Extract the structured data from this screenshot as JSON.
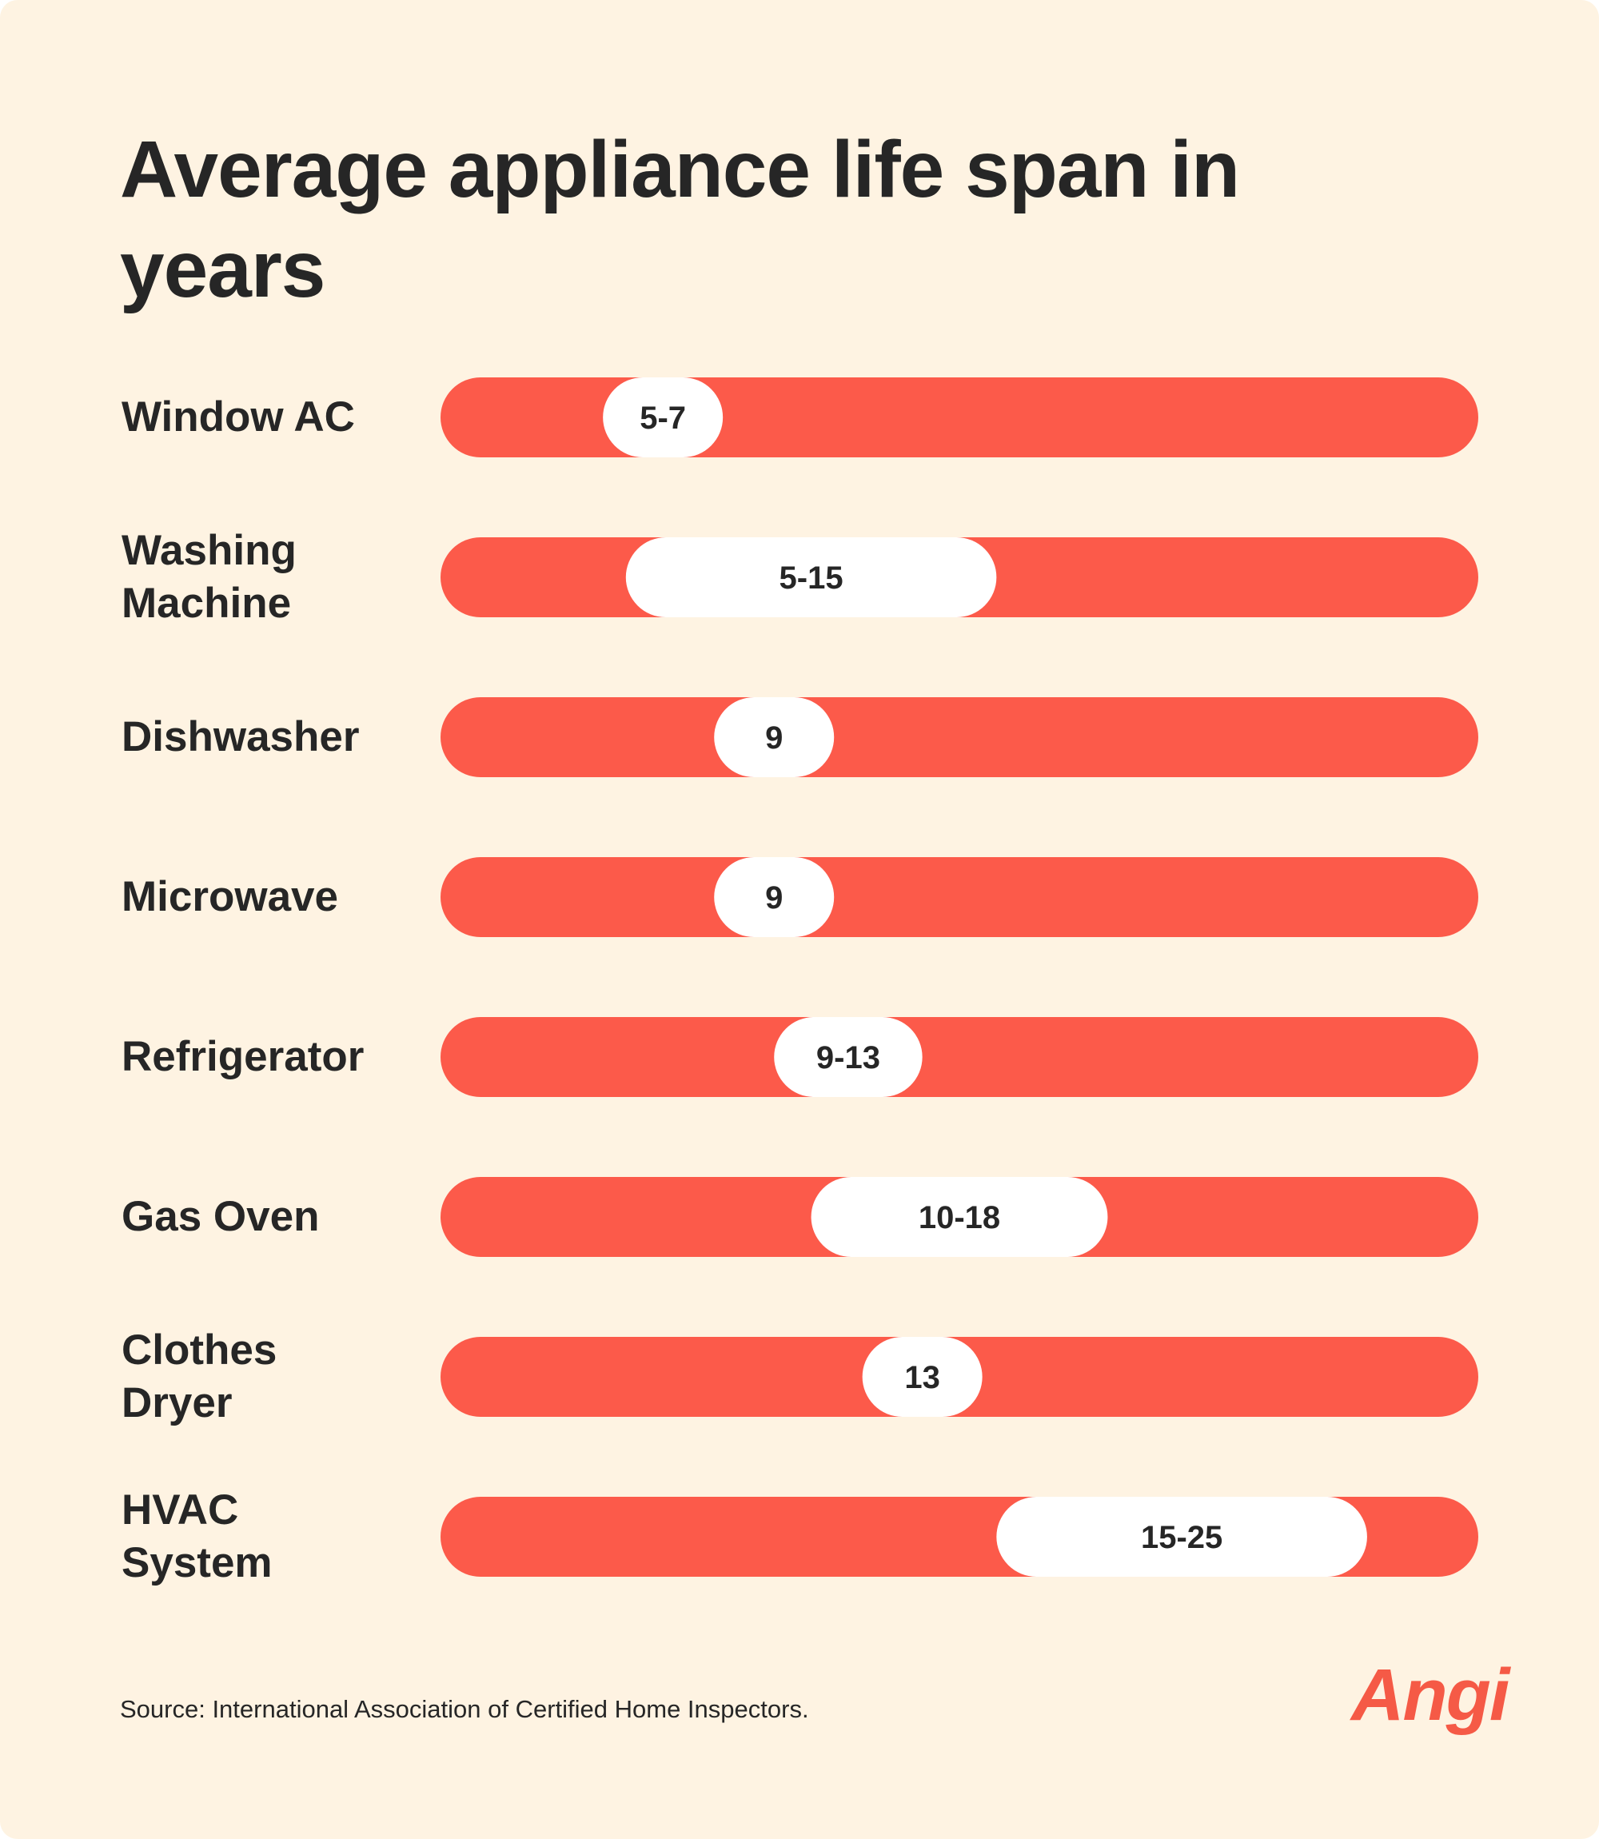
{
  "colors": {
    "background": "#fef3e2",
    "bar": "#fc5a4a",
    "pill": "#ffffff",
    "text": "#262626",
    "brand": "#f55a46"
  },
  "chart_data": {
    "type": "bar",
    "title": "Average appliance life span in years",
    "axis_range": [
      0,
      28
    ],
    "categories": [
      {
        "label_lines": [
          "Window AC"
        ],
        "value": "5-7",
        "low": 5,
        "high": 7
      },
      {
        "label_lines": [
          "Washing",
          "Machine"
        ],
        "value": "5-15",
        "low": 5,
        "high": 15
      },
      {
        "label_lines": [
          "Dishwasher"
        ],
        "value": "9",
        "low": 9,
        "high": 9
      },
      {
        "label_lines": [
          "Microwave"
        ],
        "value": "9",
        "low": 9,
        "high": 9
      },
      {
        "label_lines": [
          "Refrigerator"
        ],
        "value": "9-13",
        "low": 9,
        "high": 13
      },
      {
        "label_lines": [
          "Gas Oven"
        ],
        "value": "10-18",
        "low": 10,
        "high": 18
      },
      {
        "label_lines": [
          "Clothes",
          "Dryer"
        ],
        "value": "13",
        "low": 13,
        "high": 13
      },
      {
        "label_lines": [
          "HVAC",
          "System"
        ],
        "value": "15-25",
        "low": 15,
        "high": 25
      }
    ]
  },
  "footer": {
    "source": "Source: International Association of Certified Home Inspectors.",
    "logo": "Angi"
  }
}
